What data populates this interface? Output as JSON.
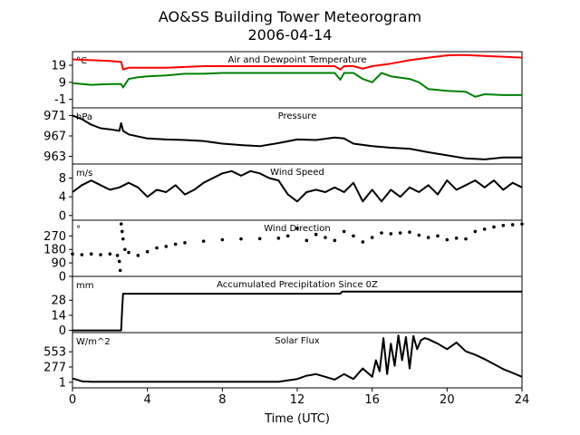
{
  "figure": {
    "title": "AO&SS Building Tower Meteorogram",
    "subtitle": "2006-04-14"
  },
  "chart_data": [
    {
      "type": "line",
      "title": "Air and Dewpoint Temperature",
      "unit": "°C",
      "xlabel": "",
      "xlim": [
        0,
        24
      ],
      "ylim": [
        -6,
        27
      ],
      "yticks": [
        -1,
        9,
        19
      ],
      "colors": {
        "air": "#ff0000",
        "dewpoint": "#008000"
      },
      "series": [
        {
          "key": "air",
          "x": [
            0,
            1,
            2,
            2.6,
            2.7,
            3,
            4,
            5,
            6,
            7,
            8,
            9,
            10,
            11,
            12,
            13,
            14,
            14.3,
            14.5,
            15,
            15.5,
            16,
            17,
            18,
            19,
            20,
            20.5,
            21,
            22,
            23,
            24
          ],
          "y": [
            22.5,
            22,
            21.5,
            21,
            16.5,
            17.5,
            17.5,
            17.5,
            18,
            18.5,
            18.5,
            18.5,
            18.5,
            18.5,
            18.5,
            18.5,
            18.5,
            16.5,
            18.5,
            18.5,
            17,
            18.5,
            20,
            22,
            23.5,
            24.8,
            25,
            25,
            24.5,
            24,
            23.5
          ]
        },
        {
          "key": "dewpoint",
          "x": [
            0,
            1,
            2,
            2.6,
            2.7,
            3,
            3.5,
            4,
            5,
            6,
            7,
            8,
            9,
            10,
            11,
            12,
            13,
            14,
            14.3,
            14.5,
            15,
            15.5,
            16,
            16.5,
            17,
            18,
            18.5,
            19,
            20,
            21,
            21.5,
            22,
            23,
            24
          ],
          "y": [
            8.5,
            7.5,
            8,
            8,
            6,
            11,
            12,
            12.5,
            13,
            14,
            14,
            14.5,
            14.5,
            14.5,
            14.5,
            14.5,
            14.5,
            14.5,
            10.5,
            14.5,
            14.5,
            11,
            9,
            14.5,
            12.5,
            11,
            9,
            5,
            4,
            3.5,
            0.5,
            2,
            1.5,
            1.5
          ]
        }
      ]
    },
    {
      "type": "line",
      "title": "Pressure",
      "unit": "hPa",
      "xlim": [
        0,
        24
      ],
      "ylim": [
        961.5,
        972.5
      ],
      "yticks": [
        963,
        967,
        971
      ],
      "colors": {
        "pressure": "#000000"
      },
      "series": [
        {
          "key": "pressure",
          "x": [
            0,
            0.5,
            1,
            1.5,
            2,
            2.5,
            2.6,
            2.7,
            3,
            4,
            5,
            6,
            7,
            8,
            9,
            10,
            11,
            12,
            13,
            14,
            14.5,
            15,
            16,
            17,
            18,
            19,
            20,
            21,
            22,
            23,
            24
          ],
          "y": [
            971,
            970.3,
            969.2,
            968.5,
            968.3,
            968,
            969.5,
            968,
            967.3,
            966.5,
            966.3,
            966.2,
            966,
            965.5,
            965.2,
            965,
            965.6,
            966.3,
            966.2,
            966.7,
            966.5,
            965.5,
            965,
            964.7,
            964.5,
            963.8,
            963.2,
            962.6,
            962.4,
            962.8,
            962.8
          ]
        }
      ]
    },
    {
      "type": "line",
      "title": "Wind Speed",
      "unit": "m/s",
      "xlim": [
        0,
        24
      ],
      "ylim": [
        -1,
        11
      ],
      "yticks": [
        0,
        4,
        8
      ],
      "colors": {
        "speed": "#000000"
      },
      "series": [
        {
          "key": "speed",
          "x": [
            0,
            0.5,
            1,
            1.5,
            2,
            2.5,
            3,
            3.5,
            4,
            4.5,
            5,
            5.5,
            6,
            6.5,
            7,
            7.5,
            8,
            8.5,
            9,
            9.5,
            10,
            10.5,
            11,
            11.5,
            12,
            12.5,
            13,
            13.5,
            14,
            14.5,
            15,
            15.5,
            16,
            16.5,
            17,
            17.5,
            18,
            18.5,
            19,
            19.5,
            20,
            20.5,
            21,
            21.5,
            22,
            22.5,
            23,
            23.5,
            24
          ],
          "y": [
            5,
            6.5,
            7.5,
            6.5,
            5.5,
            6,
            7,
            6,
            4,
            5.5,
            5,
            6.5,
            4.5,
            5.5,
            7,
            8,
            9,
            9.5,
            8.5,
            9.5,
            9,
            8,
            7.5,
            4.5,
            3,
            5,
            5.5,
            5,
            6,
            5,
            7,
            3,
            5.5,
            3,
            5.5,
            4,
            6,
            5,
            6.5,
            4.5,
            7.5,
            5.5,
            6.5,
            7.5,
            6,
            7.5,
            5.5,
            7,
            6
          ]
        }
      ]
    },
    {
      "type": "scatter",
      "title": "Wind Direction",
      "unit": "°",
      "xlim": [
        0,
        24
      ],
      "ylim": [
        0,
        375
      ],
      "yticks": [
        0,
        90,
        180,
        270
      ],
      "colors": {
        "direction": "#000000"
      },
      "series": [
        {
          "key": "direction",
          "x": [
            0,
            0.5,
            1,
            1.5,
            2,
            2.4,
            2.5,
            2.55,
            2.6,
            2.65,
            2.7,
            2.8,
            3,
            3.5,
            4,
            4.5,
            5,
            5.5,
            6,
            7,
            8,
            9,
            10,
            11,
            11.5,
            12,
            12.5,
            13,
            13.5,
            14,
            14.5,
            15,
            15.5,
            16,
            16.5,
            17,
            17.5,
            18,
            18.5,
            19,
            19.5,
            20,
            20.5,
            21,
            21.5,
            22,
            22.5,
            23,
            23.5,
            24
          ],
          "y": [
            150,
            145,
            150,
            145,
            150,
            140,
            100,
            40,
            350,
            300,
            250,
            180,
            160,
            140,
            165,
            190,
            200,
            215,
            225,
            235,
            245,
            250,
            252,
            255,
            270,
            320,
            240,
            280,
            260,
            240,
            300,
            270,
            230,
            260,
            290,
            285,
            290,
            295,
            275,
            260,
            270,
            245,
            255,
            250,
            300,
            315,
            330,
            340,
            345,
            350
          ]
        }
      ]
    },
    {
      "type": "line",
      "title": "Accumulated Precipitation Since 0Z",
      "unit": "mm",
      "xlim": [
        0,
        24
      ],
      "ylim": [
        -2,
        50
      ],
      "yticks": [
        0,
        14,
        28
      ],
      "colors": {
        "precip": "#000000"
      },
      "series": [
        {
          "key": "precip",
          "x": [
            0,
            2.6,
            2.65,
            2.7,
            14.3,
            14.4,
            15,
            24
          ],
          "y": [
            0,
            0,
            20,
            34,
            34,
            36,
            36,
            36
          ]
        }
      ]
    },
    {
      "type": "line",
      "title": "Solar Flux",
      "unit": "W/m^2",
      "xlim": [
        0,
        24
      ],
      "ylim": [
        -100,
        900
      ],
      "yticks": [
        1,
        277,
        553
      ],
      "colors": {
        "solar": "#000000"
      },
      "series": [
        {
          "key": "solar",
          "x": [
            0,
            0.5,
            1,
            2,
            3,
            4,
            5,
            6,
            7,
            8,
            9,
            10,
            11,
            12,
            12.5,
            13,
            13.5,
            14,
            14.5,
            15,
            15.5,
            16,
            16.2,
            16.4,
            16.6,
            16.8,
            17,
            17.2,
            17.4,
            17.6,
            17.8,
            18,
            18.2,
            18.4,
            18.6,
            18.8,
            19,
            19.5,
            20,
            20.5,
            21,
            21.5,
            22,
            22.5,
            23,
            23.5,
            24
          ],
          "y": [
            70,
            20,
            10,
            10,
            10,
            10,
            10,
            10,
            10,
            10,
            10,
            10,
            12,
            60,
            120,
            150,
            100,
            50,
            150,
            60,
            250,
            100,
            400,
            200,
            800,
            150,
            700,
            300,
            850,
            400,
            820,
            250,
            840,
            600,
            760,
            800,
            780,
            700,
            600,
            720,
            560,
            500,
            420,
            330,
            240,
            170,
            100
          ]
        }
      ]
    }
  ],
  "xaxis": {
    "label": "Time (UTC)",
    "ticks": [
      0,
      4,
      8,
      12,
      16,
      20,
      24
    ]
  }
}
